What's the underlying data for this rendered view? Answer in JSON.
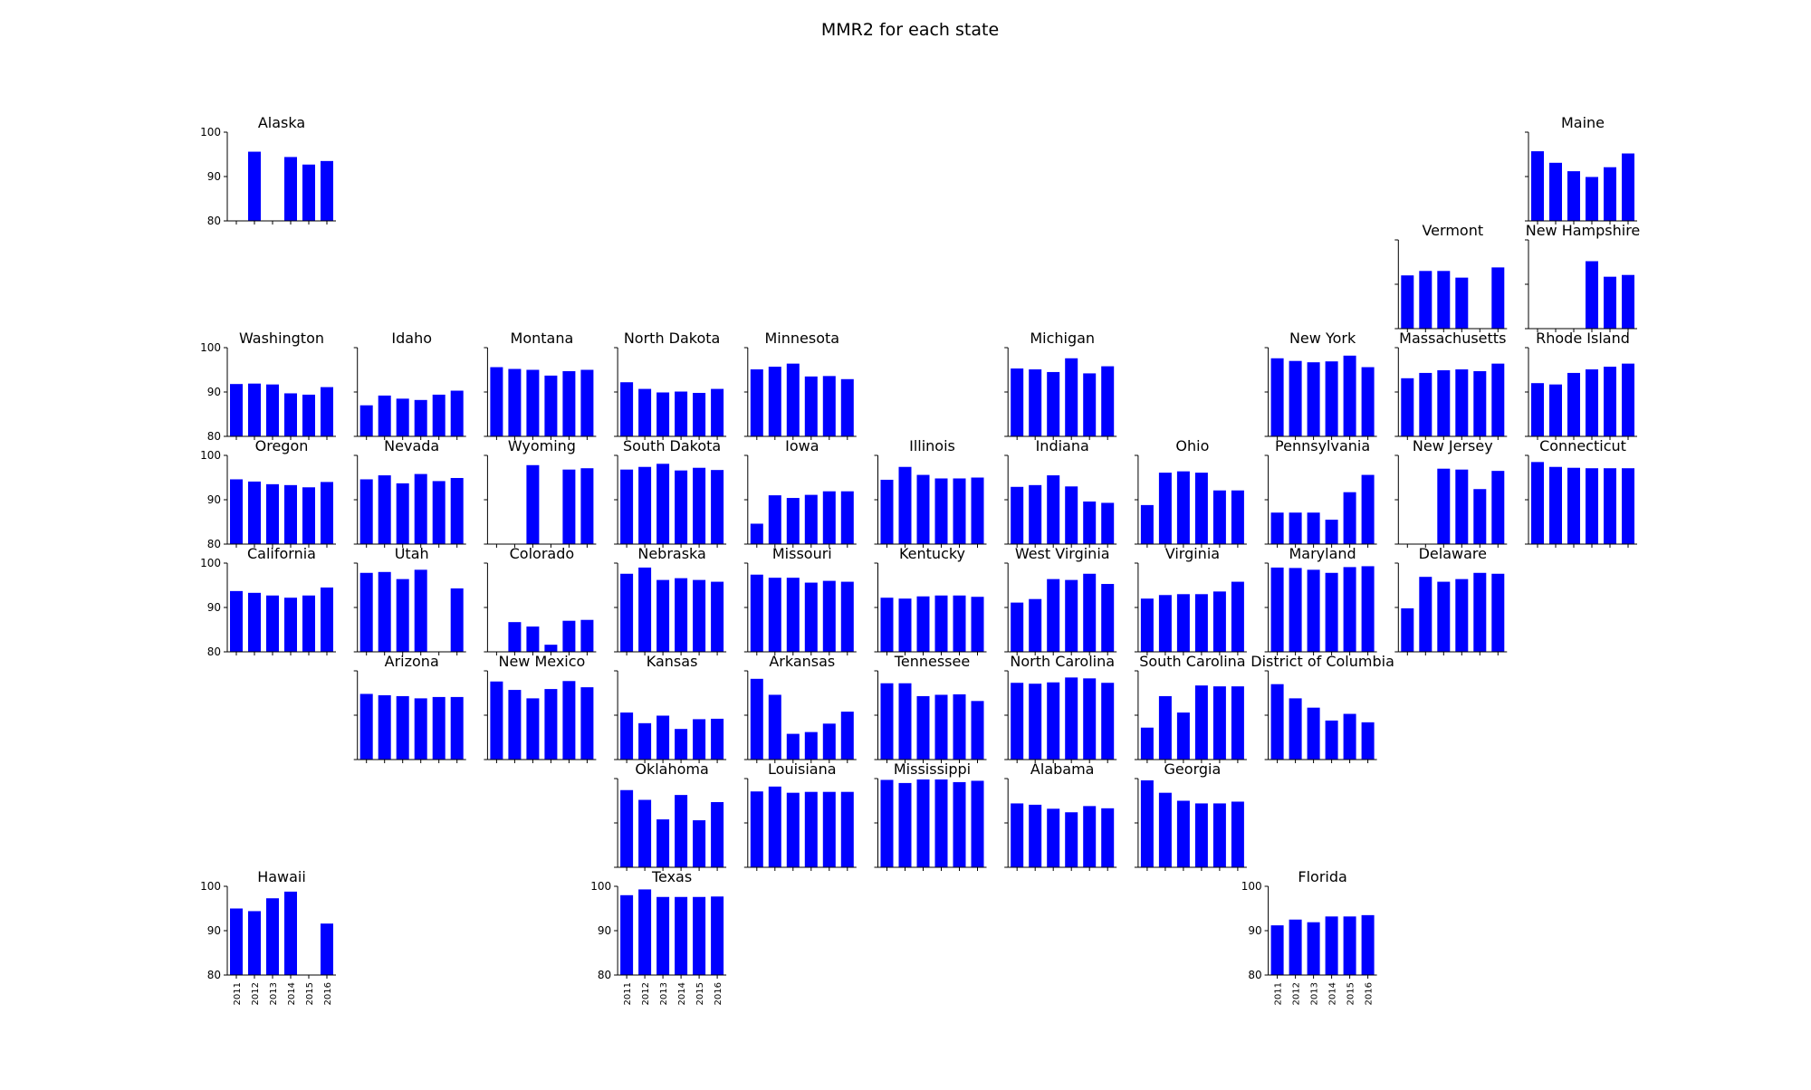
{
  "chart_data": {
    "type": "bar",
    "title": "MMR2 for each state",
    "bar_color": "#0000ff",
    "ylim": [
      80,
      100
    ],
    "yticks": [
      80,
      90,
      100
    ],
    "years": [
      "2011",
      "2012",
      "2013",
      "2014",
      "2015",
      "2016"
    ],
    "layout": "tile grid map of US states (8 columns of tiles by rows)",
    "panels": [
      {
        "state": "Alaska",
        "row": 0,
        "col": 0,
        "values": [
          null,
          95.6,
          null,
          94.4,
          92.7,
          93.5
        ],
        "show_yticks": true,
        "show_xticklabels": false
      },
      {
        "state": "Maine",
        "row": 0,
        "col": 10,
        "values": [
          95.7,
          93.1,
          91.2,
          89.9,
          92.1,
          95.2
        ]
      },
      {
        "state": "Vermont",
        "row": 1,
        "col": 9,
        "values": [
          92,
          93,
          93,
          91.5,
          null,
          93.8
        ]
      },
      {
        "state": "New Hampshire",
        "row": 1,
        "col": 10,
        "values": [
          null,
          null,
          null,
          95.2,
          91.7,
          92.1
        ]
      },
      {
        "state": "Washington",
        "row": 2,
        "col": 0,
        "values": [
          91.8,
          91.9,
          91.7,
          89.7,
          89.4,
          91.1
        ],
        "show_yticks": true
      },
      {
        "state": "Idaho",
        "row": 2,
        "col": 1,
        "values": [
          87,
          89.2,
          88.5,
          88.2,
          89.4,
          90.3
        ]
      },
      {
        "state": "Montana",
        "row": 2,
        "col": 2,
        "values": [
          95.6,
          95.2,
          95,
          93.7,
          94.7,
          95
        ]
      },
      {
        "state": "North Dakota",
        "row": 2,
        "col": 3,
        "values": [
          92.2,
          90.7,
          89.9,
          90.1,
          89.8,
          90.7
        ]
      },
      {
        "state": "Minnesota",
        "row": 2,
        "col": 4,
        "values": [
          95.1,
          95.7,
          96.4,
          93.5,
          93.6,
          92.9
        ]
      },
      {
        "state": "Michigan",
        "row": 2,
        "col": 6,
        "values": [
          95.3,
          95.1,
          94.5,
          97.6,
          94.2,
          95.8
        ]
      },
      {
        "state": "New York",
        "row": 2,
        "col": 8,
        "values": [
          97.6,
          97,
          96.7,
          96.9,
          98.2,
          95.6
        ]
      },
      {
        "state": "Massachusetts",
        "row": 2,
        "col": 9,
        "values": [
          93.1,
          94.3,
          94.9,
          95.1,
          94.7,
          96.4
        ]
      },
      {
        "state": "Rhode Island",
        "row": 2,
        "col": 10,
        "values": [
          92,
          91.7,
          94.3,
          95.1,
          95.7,
          96.4
        ]
      },
      {
        "state": "Oregon",
        "row": 3,
        "col": 0,
        "values": [
          94.6,
          94.1,
          93.5,
          93.3,
          92.8,
          94
        ],
        "show_yticks": true
      },
      {
        "state": "Nevada",
        "row": 3,
        "col": 1,
        "values": [
          94.6,
          95.5,
          93.7,
          95.8,
          94.2,
          94.9
        ]
      },
      {
        "state": "Wyoming",
        "row": 3,
        "col": 2,
        "values": [
          null,
          null,
          97.8,
          null,
          96.8,
          97.1
        ]
      },
      {
        "state": "South Dakota",
        "row": 3,
        "col": 3,
        "values": [
          96.8,
          97.4,
          98.1,
          96.6,
          97.2,
          96.7
        ]
      },
      {
        "state": "Iowa",
        "row": 3,
        "col": 4,
        "values": [
          84.6,
          91,
          90.4,
          91.1,
          91.9,
          91.9
        ]
      },
      {
        "state": "Illinois",
        "row": 3,
        "col": 5,
        "values": [
          94.5,
          97.4,
          95.6,
          94.8,
          94.8,
          95
        ]
      },
      {
        "state": "Indiana",
        "row": 3,
        "col": 6,
        "values": [
          92.9,
          93.3,
          95.5,
          93,
          89.6,
          89.3
        ]
      },
      {
        "state": "Ohio",
        "row": 3,
        "col": 7,
        "values": [
          88.8,
          96.1,
          96.4,
          96.1,
          92.1,
          92.1
        ]
      },
      {
        "state": "Pennsylvania",
        "row": 3,
        "col": 8,
        "values": [
          87.1,
          87.1,
          87.1,
          85.5,
          91.7,
          95.6
        ]
      },
      {
        "state": "New Jersey",
        "row": 3,
        "col": 9,
        "values": [
          null,
          null,
          97,
          96.8,
          92.4,
          96.5
        ]
      },
      {
        "state": "Connecticut",
        "row": 3,
        "col": 10,
        "values": [
          98.5,
          97.4,
          97.2,
          97.1,
          97.1,
          97.1
        ]
      },
      {
        "state": "California",
        "row": 4,
        "col": 0,
        "values": [
          93.7,
          93.3,
          92.7,
          92.2,
          92.7,
          94.5
        ],
        "show_yticks": true
      },
      {
        "state": "Utah",
        "row": 4,
        "col": 1,
        "values": [
          97.8,
          98,
          96.4,
          98.5,
          null,
          94.3
        ]
      },
      {
        "state": "Colorado",
        "row": 4,
        "col": 2,
        "values": [
          null,
          86.7,
          85.7,
          81.6,
          87,
          87.2
        ]
      },
      {
        "state": "Nebraska",
        "row": 4,
        "col": 3,
        "values": [
          97.6,
          99,
          96.2,
          96.6,
          96.2,
          95.8
        ]
      },
      {
        "state": "Missouri",
        "row": 4,
        "col": 4,
        "values": [
          97.4,
          96.7,
          96.7,
          95.6,
          96,
          95.8
        ]
      },
      {
        "state": "Kentucky",
        "row": 4,
        "col": 5,
        "values": [
          92.2,
          92,
          92.5,
          92.7,
          92.7,
          92.4
        ]
      },
      {
        "state": "West Virginia",
        "row": 4,
        "col": 6,
        "values": [
          91.1,
          91.9,
          96.4,
          96.2,
          97.6,
          95.3
        ]
      },
      {
        "state": "Virginia",
        "row": 4,
        "col": 7,
        "values": [
          92,
          92.8,
          93,
          93,
          93.6,
          95.8
        ]
      },
      {
        "state": "Maryland",
        "row": 4,
        "col": 8,
        "values": [
          99,
          98.9,
          98.5,
          97.8,
          99.1,
          99.3
        ]
      },
      {
        "state": "Delaware",
        "row": 4,
        "col": 9,
        "values": [
          89.8,
          96.9,
          95.8,
          96.4,
          97.8,
          97.6
        ],
        "show_xticks": true
      },
      {
        "state": "Arizona",
        "row": 5,
        "col": 1,
        "values": [
          94.8,
          94.5,
          94.3,
          93.8,
          94.1,
          94.1
        ]
      },
      {
        "state": "New Mexico",
        "row": 5,
        "col": 2,
        "values": [
          97.6,
          95.7,
          93.8,
          95.9,
          97.7,
          96.3
        ]
      },
      {
        "state": "Kansas",
        "row": 5,
        "col": 3,
        "values": [
          90.6,
          88.2,
          89.9,
          86.9,
          89.1,
          89.2
        ]
      },
      {
        "state": "Arkansas",
        "row": 5,
        "col": 4,
        "values": [
          98.2,
          94.6,
          85.8,
          86.2,
          88.1,
          90.8
        ]
      },
      {
        "state": "Tennessee",
        "row": 5,
        "col": 5,
        "values": [
          97.2,
          97.2,
          94.3,
          94.6,
          94.7,
          93.2
        ]
      },
      {
        "state": "North Carolina",
        "row": 5,
        "col": 6,
        "values": [
          97.3,
          97.1,
          97.4,
          98.5,
          98.3,
          97.3
        ]
      },
      {
        "state": "South Carolina",
        "row": 5,
        "col": 7,
        "values": [
          87.2,
          94.3,
          90.6,
          96.7,
          96.5,
          96.5
        ]
      },
      {
        "state": "District of Columbia",
        "row": 5,
        "col": 8,
        "values": [
          97,
          93.8,
          91.7,
          88.8,
          90.3,
          88.4
        ]
      },
      {
        "state": "Oklahoma",
        "row": 6,
        "col": 3,
        "values": [
          97.4,
          95.2,
          90.8,
          96.3,
          90.6,
          94.7
        ]
      },
      {
        "state": "Louisiana",
        "row": 6,
        "col": 4,
        "values": [
          97.1,
          98.2,
          96.8,
          97,
          97,
          97
        ]
      },
      {
        "state": "Mississippi",
        "row": 6,
        "col": 5,
        "values": [
          99.7,
          99,
          99.8,
          99.8,
          99.2,
          99.5
        ]
      },
      {
        "state": "Alabama",
        "row": 6,
        "col": 6,
        "values": [
          94.4,
          94.1,
          93.2,
          92.4,
          93.8,
          93.3
        ]
      },
      {
        "state": "Georgia",
        "row": 6,
        "col": 7,
        "values": [
          99.6,
          96.8,
          95,
          94.4,
          94.4,
          94.8
        ]
      },
      {
        "state": "Hawaii",
        "row": 7,
        "col": 0,
        "values": [
          95,
          94.4,
          97.3,
          98.8,
          null,
          91.6
        ],
        "show_yticks": true,
        "show_xticklabels": true
      },
      {
        "state": "Texas",
        "row": 7,
        "col": 3,
        "values": [
          98,
          99.3,
          97.6,
          97.6,
          97.6,
          97.7
        ],
        "show_yticks": true,
        "show_xticklabels": true
      },
      {
        "state": "Florida",
        "row": 7,
        "col": 8,
        "values": [
          91.2,
          92.5,
          91.9,
          93.2,
          93.2,
          93.5
        ],
        "show_yticks": true,
        "show_xticklabels": true
      }
    ]
  }
}
